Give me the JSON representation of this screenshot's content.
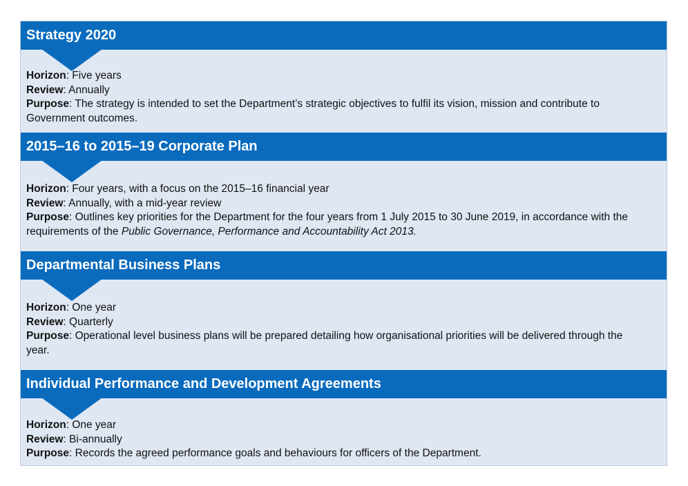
{
  "sections": [
    {
      "title": "Strategy 2020",
      "horizon_label": "Horizon",
      "horizon": ": Five years",
      "review_label": "Review",
      "review": ": Annually",
      "purpose_label": "Purpose",
      "purpose": ": The strategy is intended to set the Department’s strategic objectives to fulfil its vision, mission and contribute to Government outcomes."
    },
    {
      "title": "2015–16 to 2015–19 Corporate Plan",
      "horizon_label": "Horizon",
      "horizon": ": Four years, with a focus on the 2015–16 financial year",
      "review_label": "Review",
      "review": ": Annually, with a mid-year review",
      "purpose_label": "Purpose",
      "purpose": ": Outlines key priorities for the Department for the four years from 1 July 2015 to 30 June 2019, in accordance with the requirements of the ",
      "purpose_italic": "Public Governance, Performance and Accountability Act 2013."
    },
    {
      "title": "Departmental Business Plans",
      "horizon_label": "Horizon",
      "horizon": ": One year",
      "review_label": "Review",
      "review": ": Quarterly",
      "purpose_label": "Purpose",
      "purpose": ": Operational level business plans will be prepared detailing how organisational priorities will be delivered through the year."
    },
    {
      "title": "Individual Performance and Development Agreements",
      "horizon_label": "Horizon",
      "horizon": ": One year",
      "review_label": "Review",
      "review": ": Bi-annually",
      "purpose_label": "Purpose",
      "purpose": ": Records the agreed performance goals and behaviours for officers of the Department."
    }
  ],
  "colors": {
    "header": "#0a6bbd",
    "panel": "#dfe7f3",
    "border": "#b8c9e0"
  }
}
